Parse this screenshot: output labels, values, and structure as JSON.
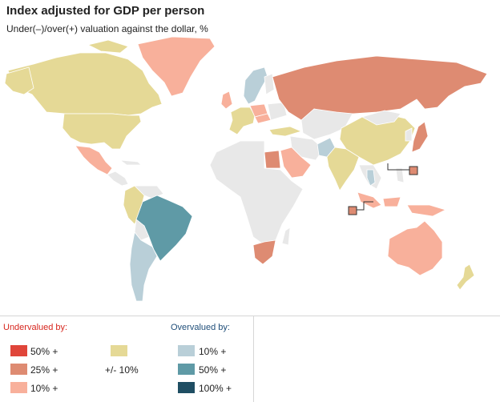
{
  "title": "Index adjusted for GDP per person",
  "subtitle": "Under(–)/over(+) valuation against the dollar, %",
  "colors": {
    "no_data": "#e8e8e8",
    "under_50": "#e0453a",
    "under_25": "#de8b72",
    "under_10": "#f8b09b",
    "neutral": "#e5d996",
    "over_10": "#b9cfd8",
    "over_50": "#5f9aa6",
    "over_100": "#1f4e63",
    "water": "#ffffff"
  },
  "legend": {
    "undervalued_heading": "Undervalued by:",
    "overvalued_heading": "Overvalued by:",
    "items": {
      "under_50": "50% +",
      "under_25": "25% +",
      "under_10": "10% +",
      "neutral": "+/- 10%",
      "over_10": "10% +",
      "over_50": "50% +",
      "over_100": "100% +"
    }
  },
  "regions": [
    {
      "name": "Greenland",
      "class": "under_10"
    },
    {
      "name": "Canada",
      "class": "neutral"
    },
    {
      "name": "United States",
      "class": "neutral"
    },
    {
      "name": "Mexico",
      "class": "under_10"
    },
    {
      "name": "Brazil",
      "class": "over_50"
    },
    {
      "name": "Argentina / Chile",
      "class": "over_10"
    },
    {
      "name": "Colombia / Peru",
      "class": "neutral"
    },
    {
      "name": "Norway / Sweden",
      "class": "over_10"
    },
    {
      "name": "Western Europe",
      "class": "neutral"
    },
    {
      "name": "Poland",
      "class": "under_10"
    },
    {
      "name": "Hungary",
      "class": "under_10"
    },
    {
      "name": "Russia",
      "class": "under_25"
    },
    {
      "name": "Turkey",
      "class": "neutral"
    },
    {
      "name": "Egypt",
      "class": "under_25"
    },
    {
      "name": "Saudi Arabia",
      "class": "under_10"
    },
    {
      "name": "Pakistan",
      "class": "over_10"
    },
    {
      "name": "India",
      "class": "neutral"
    },
    {
      "name": "China",
      "class": "neutral"
    },
    {
      "name": "Japan",
      "class": "under_25"
    },
    {
      "name": "Thailand",
      "class": "over_10"
    },
    {
      "name": "Indonesia",
      "class": "under_10"
    },
    {
      "name": "Hong Kong",
      "class": "under_25"
    },
    {
      "name": "Singapore",
      "class": "under_25"
    },
    {
      "name": "Australia",
      "class": "under_10"
    },
    {
      "name": "New Zealand",
      "class": "neutral"
    },
    {
      "name": "South Africa",
      "class": "under_25"
    }
  ]
}
